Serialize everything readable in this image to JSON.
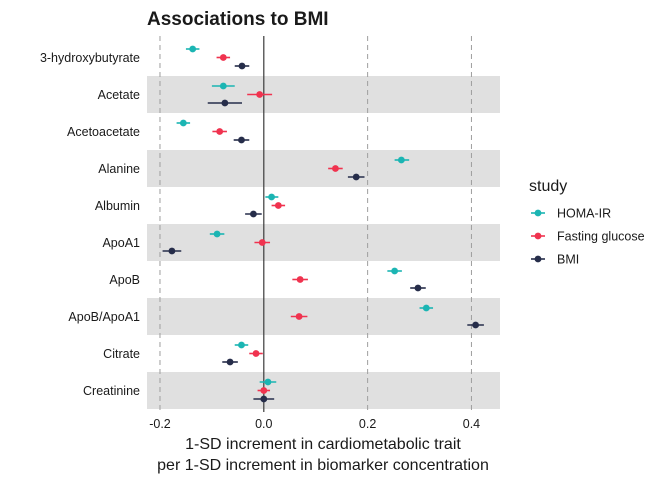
{
  "chart_data": {
    "type": "scatter",
    "title": "Associations to BMI",
    "xlabel": [
      "1-SD increment in cardiometabolic trait",
      "per 1-SD increment in biomarker concentration"
    ],
    "ylabel": "",
    "xlim": [
      -0.225,
      0.455
    ],
    "xticks": [
      -0.2,
      0.0,
      0.2,
      0.4
    ],
    "xtick_labels": [
      "-0.2",
      "0.0",
      "0.2",
      "0.4"
    ],
    "reference_lines": [
      -0.2,
      0.2,
      0.4
    ],
    "zero_line": 0.0,
    "grid": "alternating row bands",
    "categories": [
      "3-hydroxybutyrate",
      "Acetate",
      "Acetoacetate",
      "Alanine",
      "Albumin",
      "ApoA1",
      "ApoB",
      "ApoB/ApoA1",
      "Citrate",
      "Creatinine"
    ],
    "legend": {
      "title": "study",
      "position": "right",
      "entries": [
        {
          "label": "HOMA-IR",
          "color": "#1bb5b3"
        },
        {
          "label": "Fasting glucose",
          "color": "#f0334f"
        },
        {
          "label": "BMI",
          "color": "#262d4a"
        }
      ]
    },
    "series": [
      {
        "name": "HOMA-IR",
        "color": "#1bb5b3",
        "values": [
          -0.137,
          -0.078,
          -0.155,
          0.265,
          0.015,
          -0.09,
          0.252,
          0.313,
          -0.043,
          0.008
        ],
        "ci_low": [
          -0.15,
          -0.1,
          -0.168,
          0.252,
          0.003,
          -0.104,
          0.238,
          0.3,
          -0.056,
          -0.008
        ],
        "ci_high": [
          -0.124,
          -0.056,
          -0.142,
          0.28,
          0.028,
          -0.076,
          0.266,
          0.326,
          -0.03,
          0.024
        ]
      },
      {
        "name": "Fasting glucose",
        "color": "#f0334f",
        "values": [
          -0.078,
          -0.008,
          -0.085,
          0.138,
          0.028,
          -0.003,
          0.07,
          0.068,
          -0.015,
          0.0
        ],
        "ci_low": [
          -0.091,
          -0.032,
          -0.099,
          0.124,
          0.015,
          -0.018,
          0.055,
          0.052,
          -0.028,
          -0.012
        ],
        "ci_high": [
          -0.065,
          0.016,
          -0.071,
          0.152,
          0.041,
          0.012,
          0.085,
          0.084,
          -0.002,
          0.012
        ]
      },
      {
        "name": "BMI",
        "color": "#262d4a",
        "values": [
          -0.042,
          -0.075,
          -0.043,
          0.178,
          -0.02,
          -0.177,
          0.297,
          0.408,
          -0.065,
          0.0
        ],
        "ci_low": [
          -0.056,
          -0.108,
          -0.058,
          0.162,
          -0.036,
          -0.195,
          0.282,
          0.392,
          -0.08,
          -0.02
        ],
        "ci_high": [
          -0.028,
          -0.042,
          -0.028,
          0.194,
          -0.004,
          -0.159,
          0.312,
          0.424,
          -0.05,
          0.02
        ]
      }
    ]
  }
}
